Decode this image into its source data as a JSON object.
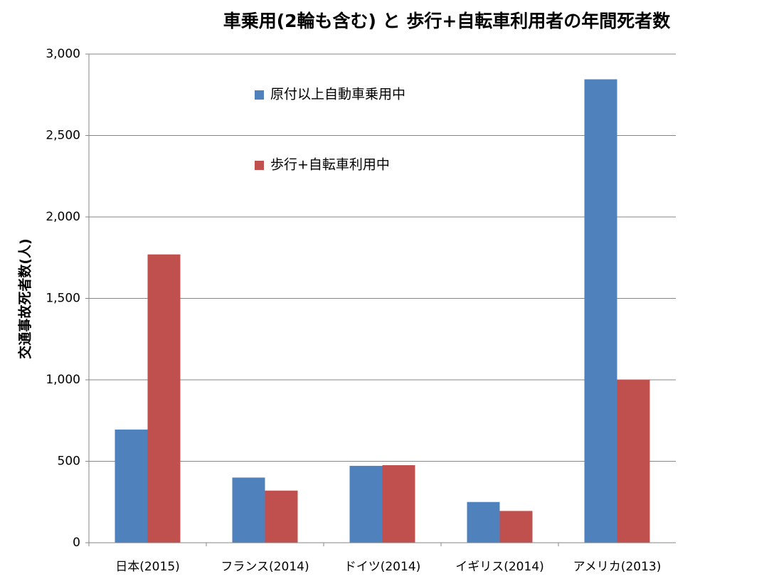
{
  "chart_data": {
    "type": "bar",
    "title": "車乗用(2輪も含む) と 歩行+自転車利用者の年間死者数",
    "y_label": "交通事故死者数(人)",
    "categories": [
      "日本(2015)",
      "フランス(2014)",
      "ドイツ(2014)",
      "イギリス(2014)",
      "アメリカ(2013)"
    ],
    "series": [
      {
        "name": "原付以上自動車乗用中",
        "color": "#4f81bd",
        "values": [
          695,
          400,
          472,
          250,
          2845
        ]
      },
      {
        "name": "歩行+自転車利用中",
        "color": "#c0504d",
        "values": [
          1770,
          320,
          476,
          195,
          1000
        ]
      }
    ],
    "ylim": [
      0,
      3000
    ],
    "yticks": [
      0,
      500,
      {
        "value": 1000,
        "label": "1,000"
      },
      {
        "value": 1500,
        "label": "1,500"
      },
      {
        "value": 2000,
        "label": "2,000"
      },
      {
        "value": 2500,
        "label": "2,500"
      },
      {
        "value": 3000,
        "label": "3,000"
      }
    ],
    "grid": true
  }
}
